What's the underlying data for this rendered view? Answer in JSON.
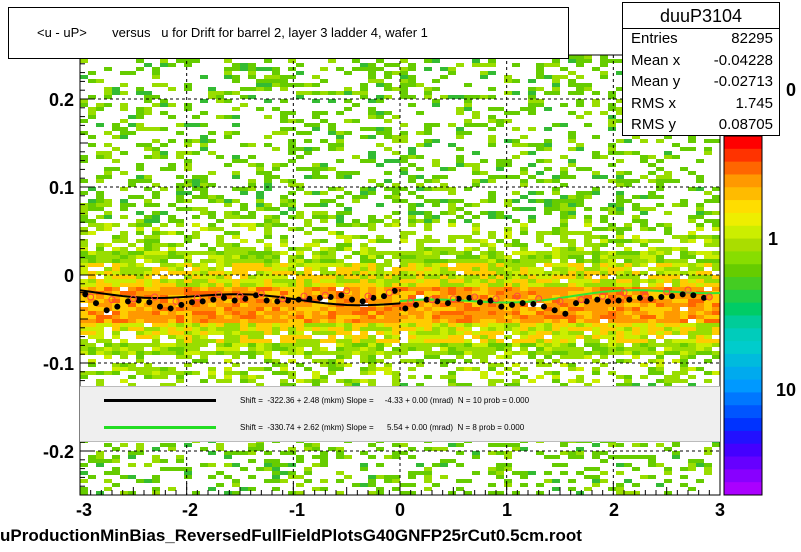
{
  "chart_data": {
    "type": "scatter",
    "title": "<u - uP>       versus   u for Drift for barrel 2, layer 3 ladder 4, wafer 1",
    "xlim": [
      -3,
      3
    ],
    "ylim": [
      -0.25,
      0.25
    ],
    "x_ticks": [
      "-3",
      "-2",
      "-1",
      "0",
      "1",
      "2",
      "3"
    ],
    "y_ticks": [
      "0.2",
      "0.1",
      "0",
      "-0.1",
      "-0.2"
    ],
    "z_ticks": [
      "1",
      "10"
    ],
    "series": [
      {
        "marker": "black-dot",
        "x": [
          -2.95,
          -2.85,
          -2.75,
          -2.65,
          -2.55,
          -2.45,
          -2.35,
          -2.25,
          -2.15,
          -2.05,
          -1.95,
          -1.85,
          -1.75,
          -1.65,
          -1.55,
          -1.45,
          -1.35,
          -1.25,
          -1.15,
          -1.05,
          -0.95,
          -0.85,
          -0.75,
          -0.65,
          -0.55,
          -0.45,
          -0.35,
          -0.25,
          -0.15,
          -0.05,
          0.05,
          0.15,
          0.25,
          0.35,
          0.45,
          0.55,
          0.65,
          0.75,
          0.85,
          0.95,
          1.05,
          1.15,
          1.25,
          1.35,
          1.45,
          1.55,
          1.65,
          1.75,
          1.85,
          1.95,
          2.05,
          2.15,
          2.25,
          2.35,
          2.45,
          2.55,
          2.65,
          2.75,
          2.85
        ],
        "y": [
          -0.022,
          -0.032,
          -0.04,
          -0.036,
          -0.03,
          -0.029,
          -0.031,
          -0.036,
          -0.038,
          -0.034,
          -0.031,
          -0.03,
          -0.028,
          -0.026,
          -0.029,
          -0.027,
          -0.023,
          -0.029,
          -0.03,
          -0.029,
          -0.028,
          -0.027,
          -0.026,
          -0.025,
          -0.023,
          -0.028,
          -0.03,
          -0.026,
          -0.024,
          -0.018,
          -0.038,
          -0.034,
          -0.028,
          -0.03,
          -0.032,
          -0.027,
          -0.026,
          -0.031,
          -0.029,
          -0.036,
          -0.034,
          -0.032,
          -0.033,
          -0.036,
          -0.04,
          -0.044,
          -0.032,
          -0.03,
          -0.028,
          -0.03,
          -0.029,
          -0.028,
          -0.026,
          -0.027,
          -0.025,
          -0.024,
          -0.022,
          -0.023,
          -0.026
        ]
      },
      {
        "marker": "red-open-circle",
        "x": [
          -2.9,
          -2.7,
          -2.5,
          -2.3,
          -2.1,
          -1.9,
          -1.7,
          -1.5,
          -1.3,
          -1.1,
          -0.9,
          -0.7,
          -0.5,
          -0.3,
          -0.1,
          0.1,
          0.3,
          0.5,
          0.7,
          0.9,
          1.1,
          1.3,
          1.5,
          1.7,
          1.9,
          2.1,
          2.3,
          2.5,
          2.7,
          2.9
        ],
        "y": [
          -0.025,
          -0.028,
          -0.027,
          -0.025,
          -0.03,
          -0.026,
          -0.022,
          -0.024,
          -0.021,
          -0.027,
          -0.024,
          -0.023,
          -0.018,
          -0.024,
          -0.02,
          -0.03,
          -0.028,
          -0.027,
          -0.025,
          -0.027,
          -0.024,
          -0.027,
          -0.03,
          -0.028,
          -0.024,
          -0.02,
          -0.023,
          -0.019,
          -0.017,
          -0.025
        ]
      }
    ],
    "fits": [
      {
        "color": "#000000",
        "x_range": [
          -3,
          0
        ],
        "slope_per_unit": -0.00433,
        "intercept": -0.0322
      },
      {
        "color": "#33e633",
        "x_range": [
          0,
          3
        ],
        "slope_per_unit": 0.00554,
        "intercept": -0.0331
      }
    ]
  },
  "stats": {
    "name": "duuP3104",
    "rows": [
      {
        "label": "Entries",
        "value": "82295"
      },
      {
        "label": "Mean x",
        "value": "-0.04228"
      },
      {
        "label": "Mean y",
        "value": "-0.02713"
      },
      {
        "label": "RMS x",
        "value": "1.745"
      },
      {
        "label": "RMS y",
        "value": "0.08705"
      }
    ]
  },
  "legend": {
    "black_fit_text": "Shift =  -322.36 + 2.48 (mkm) Slope =     -4.33 + 0.00 (mrad)  N = 10 prob = 0.000",
    "green_fit_text": "Shift =  -330.74 + 2.62 (mkm) Slope =      5.54 + 0.00 (mrad)  N = 8 prob = 0.000",
    "black_color": "#000000",
    "green_color": "#22dd22"
  },
  "footer": "uProductionMinBias_ReversedFullFieldPlotsG40GNFP25rCut0.5cm.root",
  "partial_label": "0"
}
